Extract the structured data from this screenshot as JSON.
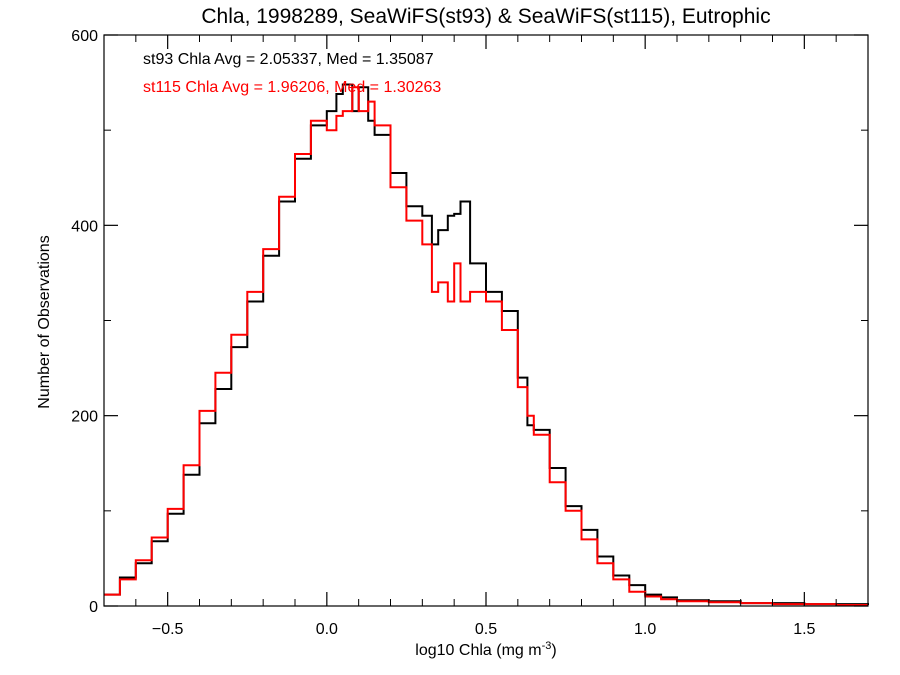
{
  "chart_data": {
    "type": "line",
    "title": "Chla, 1998289, SeaWiFS(st93) & SeaWiFS(st115), Eutrophic",
    "xlabel_main": "log10 Chla (mg m",
    "xlabel_sup": "-3",
    "xlabel_close": ")",
    "ylabel": "Number of Observations",
    "xlim": [
      -0.7,
      1.7
    ],
    "ylim": [
      0,
      600
    ],
    "xticks": [
      -0.5,
      0.0,
      0.5,
      1.0,
      1.5
    ],
    "xtick_labels": [
      "−0.5",
      "0.0",
      "0.5",
      "1.0",
      "1.5"
    ],
    "yticks": [
      0,
      200,
      400,
      600
    ],
    "ytick_labels": [
      "0",
      "200",
      "400",
      "600"
    ],
    "x_minor_step": 0.1,
    "y_minor_step": 100,
    "grid": false,
    "annotations": [
      "st93 Chla Avg = 2.05337, Med = 1.35087",
      "st115 Chla Avg = 1.96206, Med = 1.30263"
    ],
    "series": [
      {
        "color": "#000000",
        "x": [
          -0.7,
          -0.65,
          -0.6,
          -0.55,
          -0.5,
          -0.45,
          -0.4,
          -0.35,
          -0.3,
          -0.25,
          -0.2,
          -0.15,
          -0.1,
          -0.05,
          0.0,
          0.03,
          0.05,
          0.08,
          0.1,
          0.13,
          0.15,
          0.2,
          0.25,
          0.3,
          0.33,
          0.35,
          0.38,
          0.4,
          0.42,
          0.45,
          0.5,
          0.55,
          0.6,
          0.63,
          0.65,
          0.7,
          0.75,
          0.8,
          0.85,
          0.9,
          0.95,
          1.0,
          1.05,
          1.1,
          1.2,
          1.3,
          1.4,
          1.5,
          1.6,
          1.7
        ],
        "y": [
          12,
          30,
          45,
          68,
          97,
          138,
          192,
          228,
          272,
          320,
          368,
          425,
          470,
          505,
          520,
          538,
          548,
          520,
          545,
          510,
          495,
          455,
          420,
          410,
          380,
          395,
          410,
          412,
          425,
          360,
          330,
          310,
          240,
          190,
          185,
          145,
          105,
          80,
          52,
          32,
          22,
          12,
          9,
          6,
          5,
          3,
          3,
          2,
          2,
          1
        ]
      },
      {
        "color": "#ff0000",
        "x": [
          -0.7,
          -0.65,
          -0.6,
          -0.55,
          -0.5,
          -0.45,
          -0.4,
          -0.35,
          -0.3,
          -0.25,
          -0.2,
          -0.15,
          -0.1,
          -0.05,
          0.0,
          0.03,
          0.05,
          0.08,
          0.1,
          0.13,
          0.15,
          0.2,
          0.25,
          0.3,
          0.33,
          0.35,
          0.38,
          0.4,
          0.42,
          0.45,
          0.5,
          0.55,
          0.6,
          0.63,
          0.65,
          0.7,
          0.75,
          0.8,
          0.85,
          0.9,
          0.95,
          1.0,
          1.05,
          1.1,
          1.2,
          1.3,
          1.4,
          1.5,
          1.6,
          1.7
        ],
        "y": [
          12,
          28,
          48,
          72,
          102,
          148,
          205,
          245,
          285,
          330,
          375,
          430,
          475,
          510,
          500,
          515,
          520,
          545,
          520,
          530,
          505,
          440,
          405,
          380,
          330,
          340,
          320,
          360,
          320,
          330,
          320,
          290,
          230,
          200,
          180,
          130,
          100,
          70,
          45,
          28,
          15,
          10,
          7,
          5,
          4,
          3,
          2,
          2,
          1,
          1
        ]
      }
    ]
  }
}
